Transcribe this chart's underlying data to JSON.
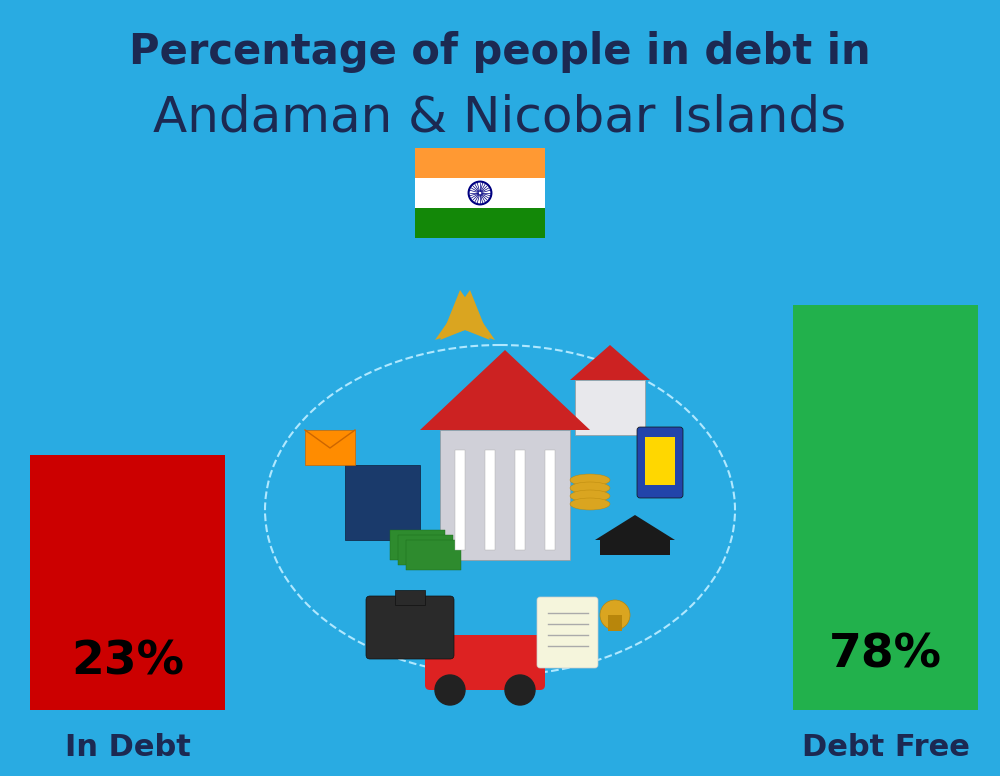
{
  "title_line1": "Percentage of people in debt in",
  "title_line2": "Andaman & Nicobar Islands",
  "background_color": "#29ABE2",
  "bar1_label": "23%",
  "bar1_color": "#CC0000",
  "bar1_text": "In Debt",
  "bar2_label": "78%",
  "bar2_color": "#22B14C",
  "bar2_text": "Debt Free",
  "title_line1_fontsize": 30,
  "title_line2_fontsize": 36,
  "label_fontsize": 22,
  "pct_fontsize": 34,
  "text_color_dark": "#1C2952",
  "flag_saffron": "#FF9933",
  "flag_white": "#FFFFFF",
  "flag_green": "#138808",
  "flag_navy": "#000080"
}
